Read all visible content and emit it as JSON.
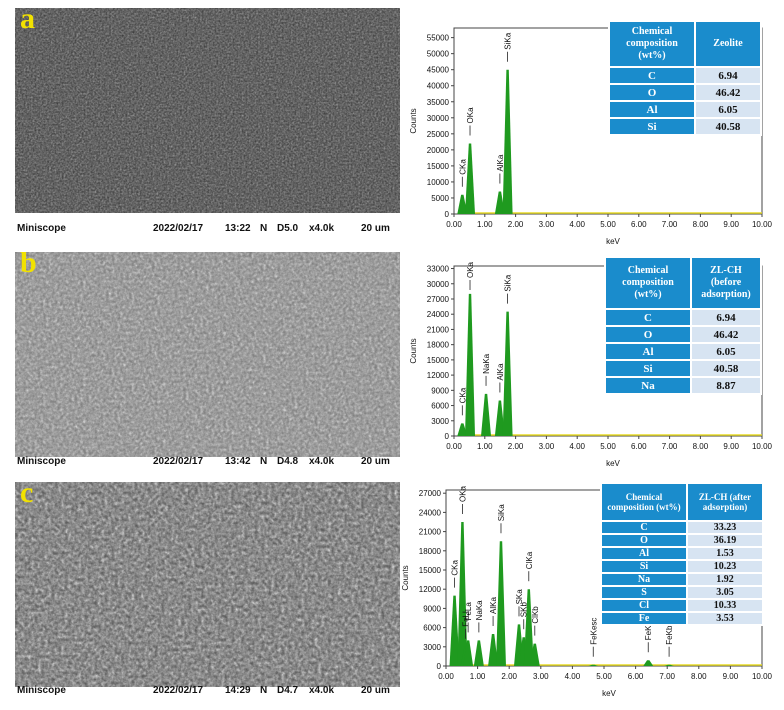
{
  "panels": [
    {
      "letter": "a",
      "sem_texture": "dark",
      "info": {
        "name": "Miniscope",
        "date": "2022/02/17",
        "time": "13:22",
        "mode": "N",
        "wd": "D5.0",
        "mag": "x4.0k",
        "scale": "20 um"
      },
      "chart_data": {
        "type": "line",
        "xlabel": "keV",
        "ylabel": "Counts",
        "xlim": [
          0,
          10
        ],
        "ylim": [
          0,
          58000
        ],
        "xticks": [
          "0.00",
          "1.00",
          "2.00",
          "3.00",
          "4.00",
          "5.00",
          "6.00",
          "7.00",
          "8.00",
          "9.00",
          "10.00"
        ],
        "yticks": [
          0,
          5000,
          10000,
          15000,
          20000,
          25000,
          30000,
          35000,
          40000,
          45000,
          50000,
          55000
        ],
        "peaks": [
          {
            "label": "CKa",
            "x": 0.27,
            "y": 6000
          },
          {
            "label": "OKa",
            "x": 0.52,
            "y": 22000
          },
          {
            "label": "AlKa",
            "x": 1.49,
            "y": 7000
          },
          {
            "label": "SiKa",
            "x": 1.74,
            "y": 45000
          }
        ]
      },
      "table": {
        "head": [
          "Chemical composition (wt%)",
          "Zeolite"
        ],
        "rows": [
          [
            "C",
            "6.94"
          ],
          [
            "O",
            "46.42"
          ],
          [
            "Al",
            "6.05"
          ],
          [
            "Si",
            "40.58"
          ]
        ]
      }
    },
    {
      "letter": "b",
      "sem_texture": "medium",
      "info": {
        "name": "Miniscope",
        "date": "2022/02/17",
        "time": "13:42",
        "mode": "N",
        "wd": "D4.8",
        "mag": "x4.0k",
        "scale": "20 um"
      },
      "chart_data": {
        "type": "line",
        "xlabel": "keV",
        "ylabel": "Counts",
        "xlim": [
          0,
          10
        ],
        "ylim": [
          0,
          33500
        ],
        "xticks": [
          "0.00",
          "1.00",
          "2.00",
          "3.00",
          "4.00",
          "5.00",
          "6.00",
          "7.00",
          "8.00",
          "9.00",
          "10.00"
        ],
        "yticks": [
          0,
          3000,
          6000,
          9000,
          12000,
          15000,
          18000,
          21000,
          24000,
          27000,
          30000,
          33000
        ],
        "peaks": [
          {
            "label": "CKa",
            "x": 0.27,
            "y": 2500
          },
          {
            "label": "OKa",
            "x": 0.52,
            "y": 28000
          },
          {
            "label": "NaKa",
            "x": 1.04,
            "y": 8300
          },
          {
            "label": "AlKa",
            "x": 1.49,
            "y": 7000
          },
          {
            "label": "SiKa",
            "x": 1.74,
            "y": 24500
          }
        ]
      },
      "table": {
        "head": [
          "Chemical composition (wt%)",
          "ZL-CH (before adsorption)"
        ],
        "rows": [
          [
            "C",
            "6.94"
          ],
          [
            "O",
            "46.42"
          ],
          [
            "Al",
            "6.05"
          ],
          [
            "Si",
            "40.58"
          ],
          [
            "Na",
            "8.87"
          ]
        ]
      }
    },
    {
      "letter": "c",
      "sem_texture": "bright",
      "info": {
        "name": "Miniscope",
        "date": "2022/02/17",
        "time": "14:29",
        "mode": "N",
        "wd": "D4.7",
        "mag": "x4.0k",
        "scale": "20 um"
      },
      "chart_data": {
        "type": "line",
        "xlabel": "keV",
        "ylabel": "Counts",
        "xlim": [
          0,
          10
        ],
        "ylim": [
          0,
          27500
        ],
        "xticks": [
          "0.00",
          "1.00",
          "2.00",
          "3.00",
          "4.00",
          "5.00",
          "6.00",
          "7.00",
          "8.00",
          "9.00",
          "10.00"
        ],
        "yticks": [
          0,
          3000,
          6000,
          9000,
          12000,
          15000,
          18000,
          21000,
          24000,
          27000
        ],
        "peaks": [
          {
            "label": "CKa",
            "x": 0.27,
            "y": 11000
          },
          {
            "label": "OKa",
            "x": 0.52,
            "y": 22500
          },
          {
            "label": "FeLl",
            "x": 0.62,
            "y": 3000
          },
          {
            "label": "FeLa",
            "x": 0.7,
            "y": 4000
          },
          {
            "label": "NaKa",
            "x": 1.04,
            "y": 4000
          },
          {
            "label": "AlKa",
            "x": 1.49,
            "y": 5000
          },
          {
            "label": "SiKa",
            "x": 1.74,
            "y": 19500
          },
          {
            "label": "SKa",
            "x": 2.31,
            "y": 6500
          },
          {
            "label": "SKb",
            "x": 2.46,
            "y": 4500
          },
          {
            "label": "ClKa",
            "x": 2.62,
            "y": 12000
          },
          {
            "label": "ClKb",
            "x": 2.81,
            "y": 3500
          },
          {
            "label": "FeKesc",
            "x": 4.66,
            "y": 200
          },
          {
            "label": "FeKa",
            "x": 6.4,
            "y": 900
          },
          {
            "label": "FeKb",
            "x": 7.06,
            "y": 200
          }
        ]
      },
      "table": {
        "head": [
          "Chemical composition (wt%)",
          "ZL-CH (after adsorption)"
        ],
        "rows": [
          [
            "C",
            "33.23"
          ],
          [
            "O",
            "36.19"
          ],
          [
            "Al",
            "1.53"
          ],
          [
            "Si",
            "10.23"
          ],
          [
            "Na",
            "1.92"
          ],
          [
            "S",
            "3.05"
          ],
          [
            "Cl",
            "10.33"
          ],
          [
            "Fe",
            "3.53"
          ]
        ]
      }
    }
  ]
}
